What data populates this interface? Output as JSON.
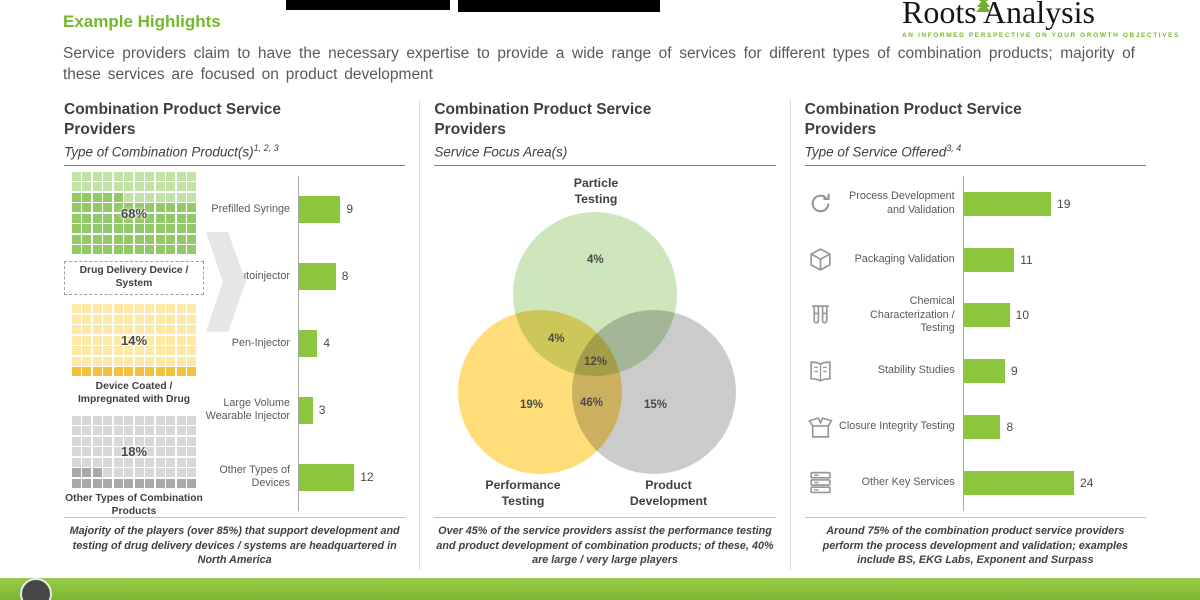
{
  "colors": {
    "accent_green": "#76B82A",
    "bar_green": "#8CC63F",
    "text_gray": "#595959"
  },
  "top": {
    "title": "Example Highlights",
    "lede": "Service providers claim to have the necessary expertise to provide a wide range of services for different types of combination products; majority of these services are focused on product development"
  },
  "logo": {
    "name": "Roots Analysis",
    "tagline": "AN INFORMED PERSPECTIVE ON YOUR GROWTH OBJECTIVES"
  },
  "panels": [
    {
      "heading": "Combination Product Service Providers",
      "subtitle": "Type of Combination Product(s)",
      "subtitle_sup": "1, 2, 3",
      "caption": "Majority of the players (over 85%) that support development and testing of drug delivery devices / systems are headquartered in North America"
    },
    {
      "heading": "Combination Product Service Providers",
      "subtitle": "Service Focus Area(s)",
      "subtitle_sup": "",
      "caption": "Over 45% of the service providers assist the performance testing and product development of combination products; of these, 40% are large / very large players"
    },
    {
      "heading": "Combination Product Service Providers",
      "subtitle": "Type of Service Offered",
      "subtitle_sup": "3, 4",
      "caption": "Around 75% of the combination product service providers perform the process development and validation; examples include BS, EKG Labs, Exponent and Surpass"
    }
  ],
  "chart_data": [
    {
      "type": "bar",
      "title": "Type of Combination Product(s)",
      "waffles": [
        {
          "label": "Drug Delivery Device / System",
          "percent": 68,
          "light": "#C2E2A6",
          "dark": "#93C968"
        },
        {
          "label": "Device Coated / Impregnated with Drug",
          "percent": 14,
          "light": "#FFE9A6",
          "dark": "#EFC33D"
        },
        {
          "label": "Other Types of Combination Products",
          "percent": 18,
          "light": "#D8D8D8",
          "dark": "#A9A9A9"
        }
      ],
      "categories": [
        "Prefilled Syringe",
        "Autoinjector",
        "Pen-Injector",
        "Large Volume Wearable Injector",
        "Other Types of Devices"
      ],
      "values": [
        9,
        8,
        4,
        3,
        12
      ],
      "xlim": [
        0,
        13
      ],
      "bar_color": "#8CC63F"
    },
    {
      "type": "venn",
      "sets": [
        "Particle Testing",
        "Performance Testing",
        "Product Development"
      ],
      "regions": {
        "particle_only": "4%",
        "particle_performance": "4%",
        "particle_product": "12%",
        "performance_only": "19%",
        "all_three": "46%",
        "product_only": "15%"
      }
    },
    {
      "type": "bar",
      "title": "Type of Service Offered",
      "categories": [
        "Process Development and Validation",
        "Packaging Validation",
        "Chemical Characterization / Testing",
        "Stability Studies",
        "Closure Integrity Testing",
        "Other Key Services"
      ],
      "values": [
        19,
        11,
        10,
        9,
        8,
        24
      ],
      "icons": [
        "process-refresh-icon",
        "package-box-icon",
        "test-tubes-icon",
        "open-book-icon",
        "open-box-icon",
        "server-stack-icon"
      ],
      "xlim": [
        0,
        26
      ],
      "bar_color": "#8CC63F"
    }
  ]
}
